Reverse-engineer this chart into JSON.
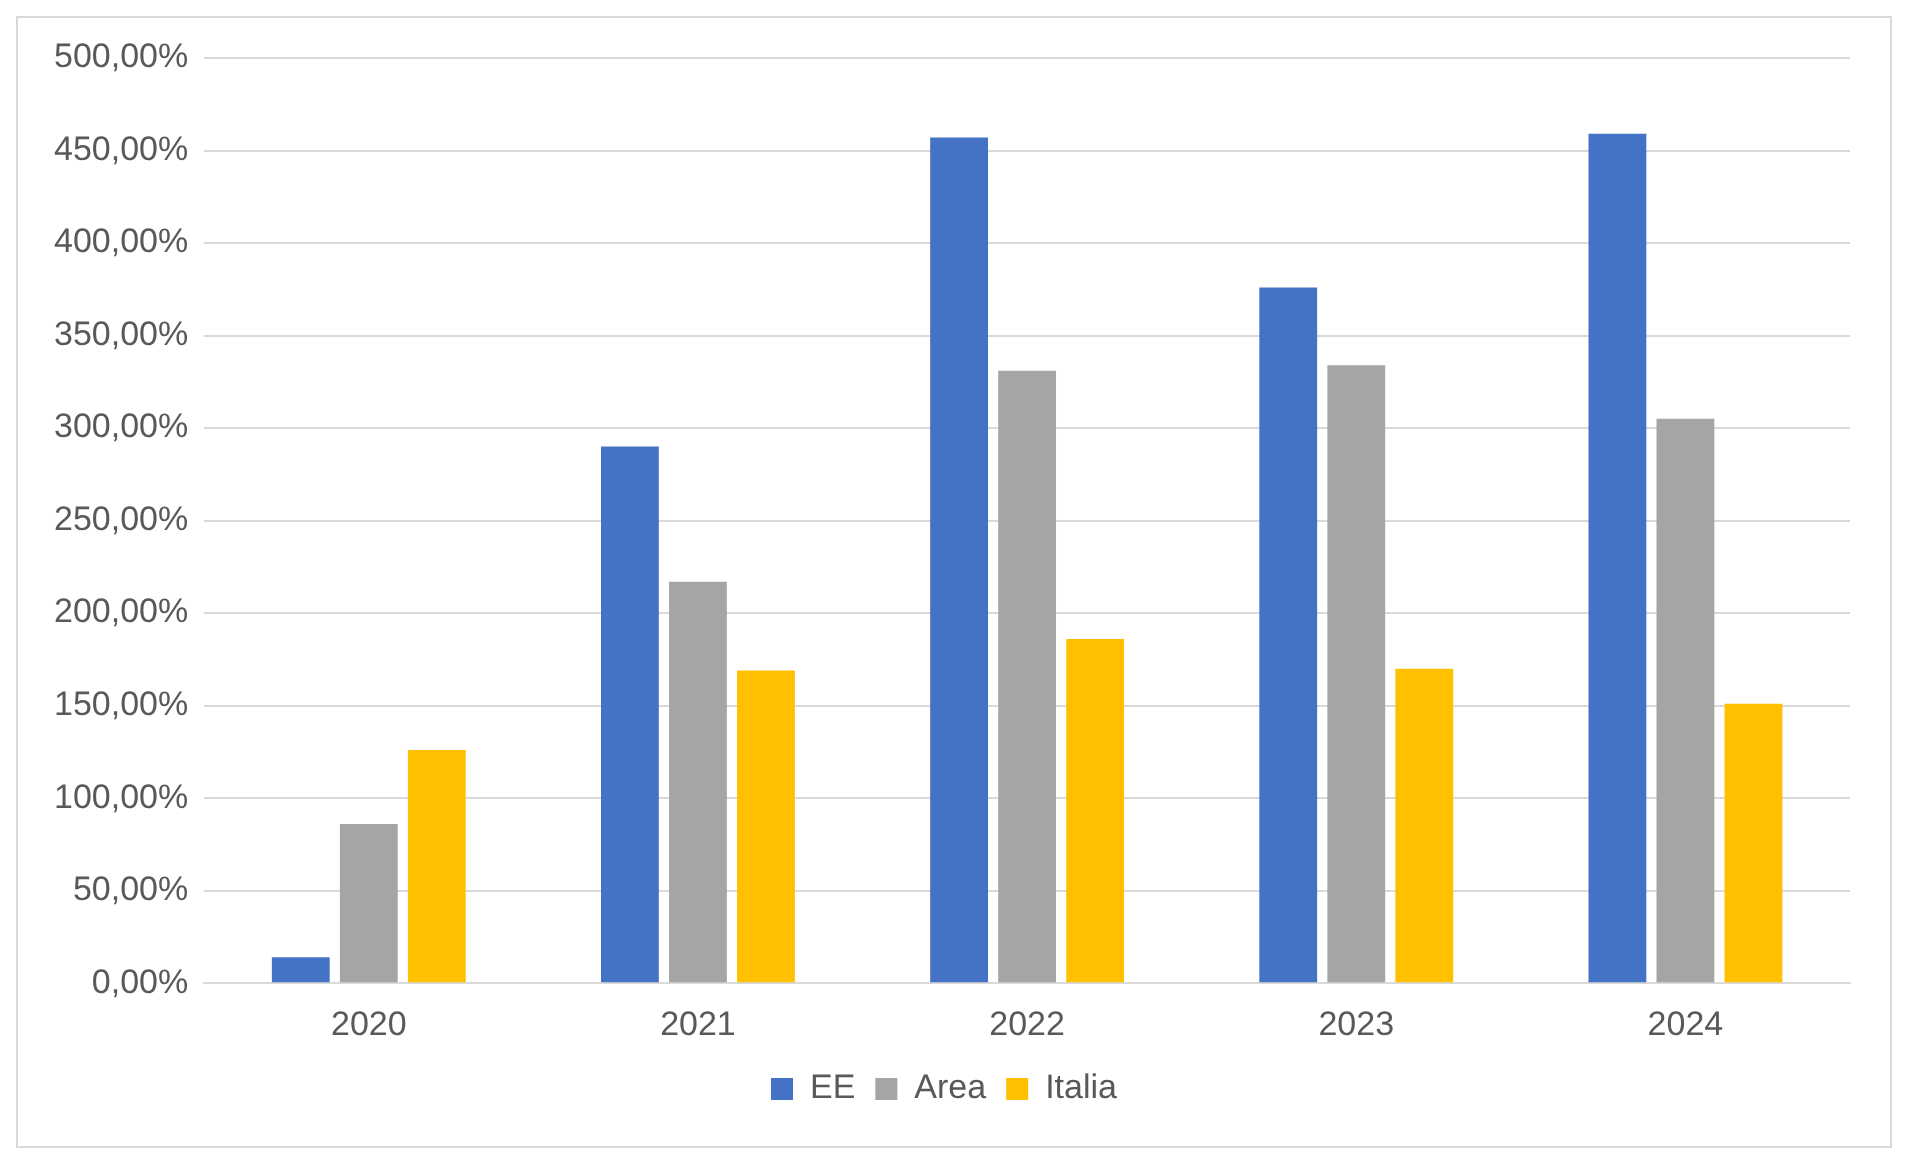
{
  "chart_data": {
    "type": "bar",
    "categories": [
      "2020",
      "2021",
      "2022",
      "2023",
      "2024"
    ],
    "series": [
      {
        "name": "EE",
        "color": "#4472c4",
        "values": [
          14,
          290,
          457,
          376,
          459
        ]
      },
      {
        "name": "Area",
        "color": "#a5a5a5",
        "values": [
          86,
          217,
          331,
          334,
          305
        ]
      },
      {
        "name": "Italia",
        "color": "#ffc000",
        "values": [
          126,
          169,
          186,
          170,
          151
        ]
      }
    ],
    "ylim": [
      0,
      500
    ],
    "yticks": [
      {
        "value": 0,
        "label": "0,00%"
      },
      {
        "value": 50,
        "label": "50,00%"
      },
      {
        "value": 100,
        "label": "100,00%"
      },
      {
        "value": 150,
        "label": "150,00%"
      },
      {
        "value": 200,
        "label": "200,00%"
      },
      {
        "value": 250,
        "label": "250,00%"
      },
      {
        "value": 300,
        "label": "300,00%"
      },
      {
        "value": 350,
        "label": "350,00%"
      },
      {
        "value": 400,
        "label": "400,00%"
      },
      {
        "value": 450,
        "label": "450,00%"
      },
      {
        "value": 500,
        "label": "500,00%"
      }
    ],
    "grid": "y",
    "legend": "bottom"
  }
}
